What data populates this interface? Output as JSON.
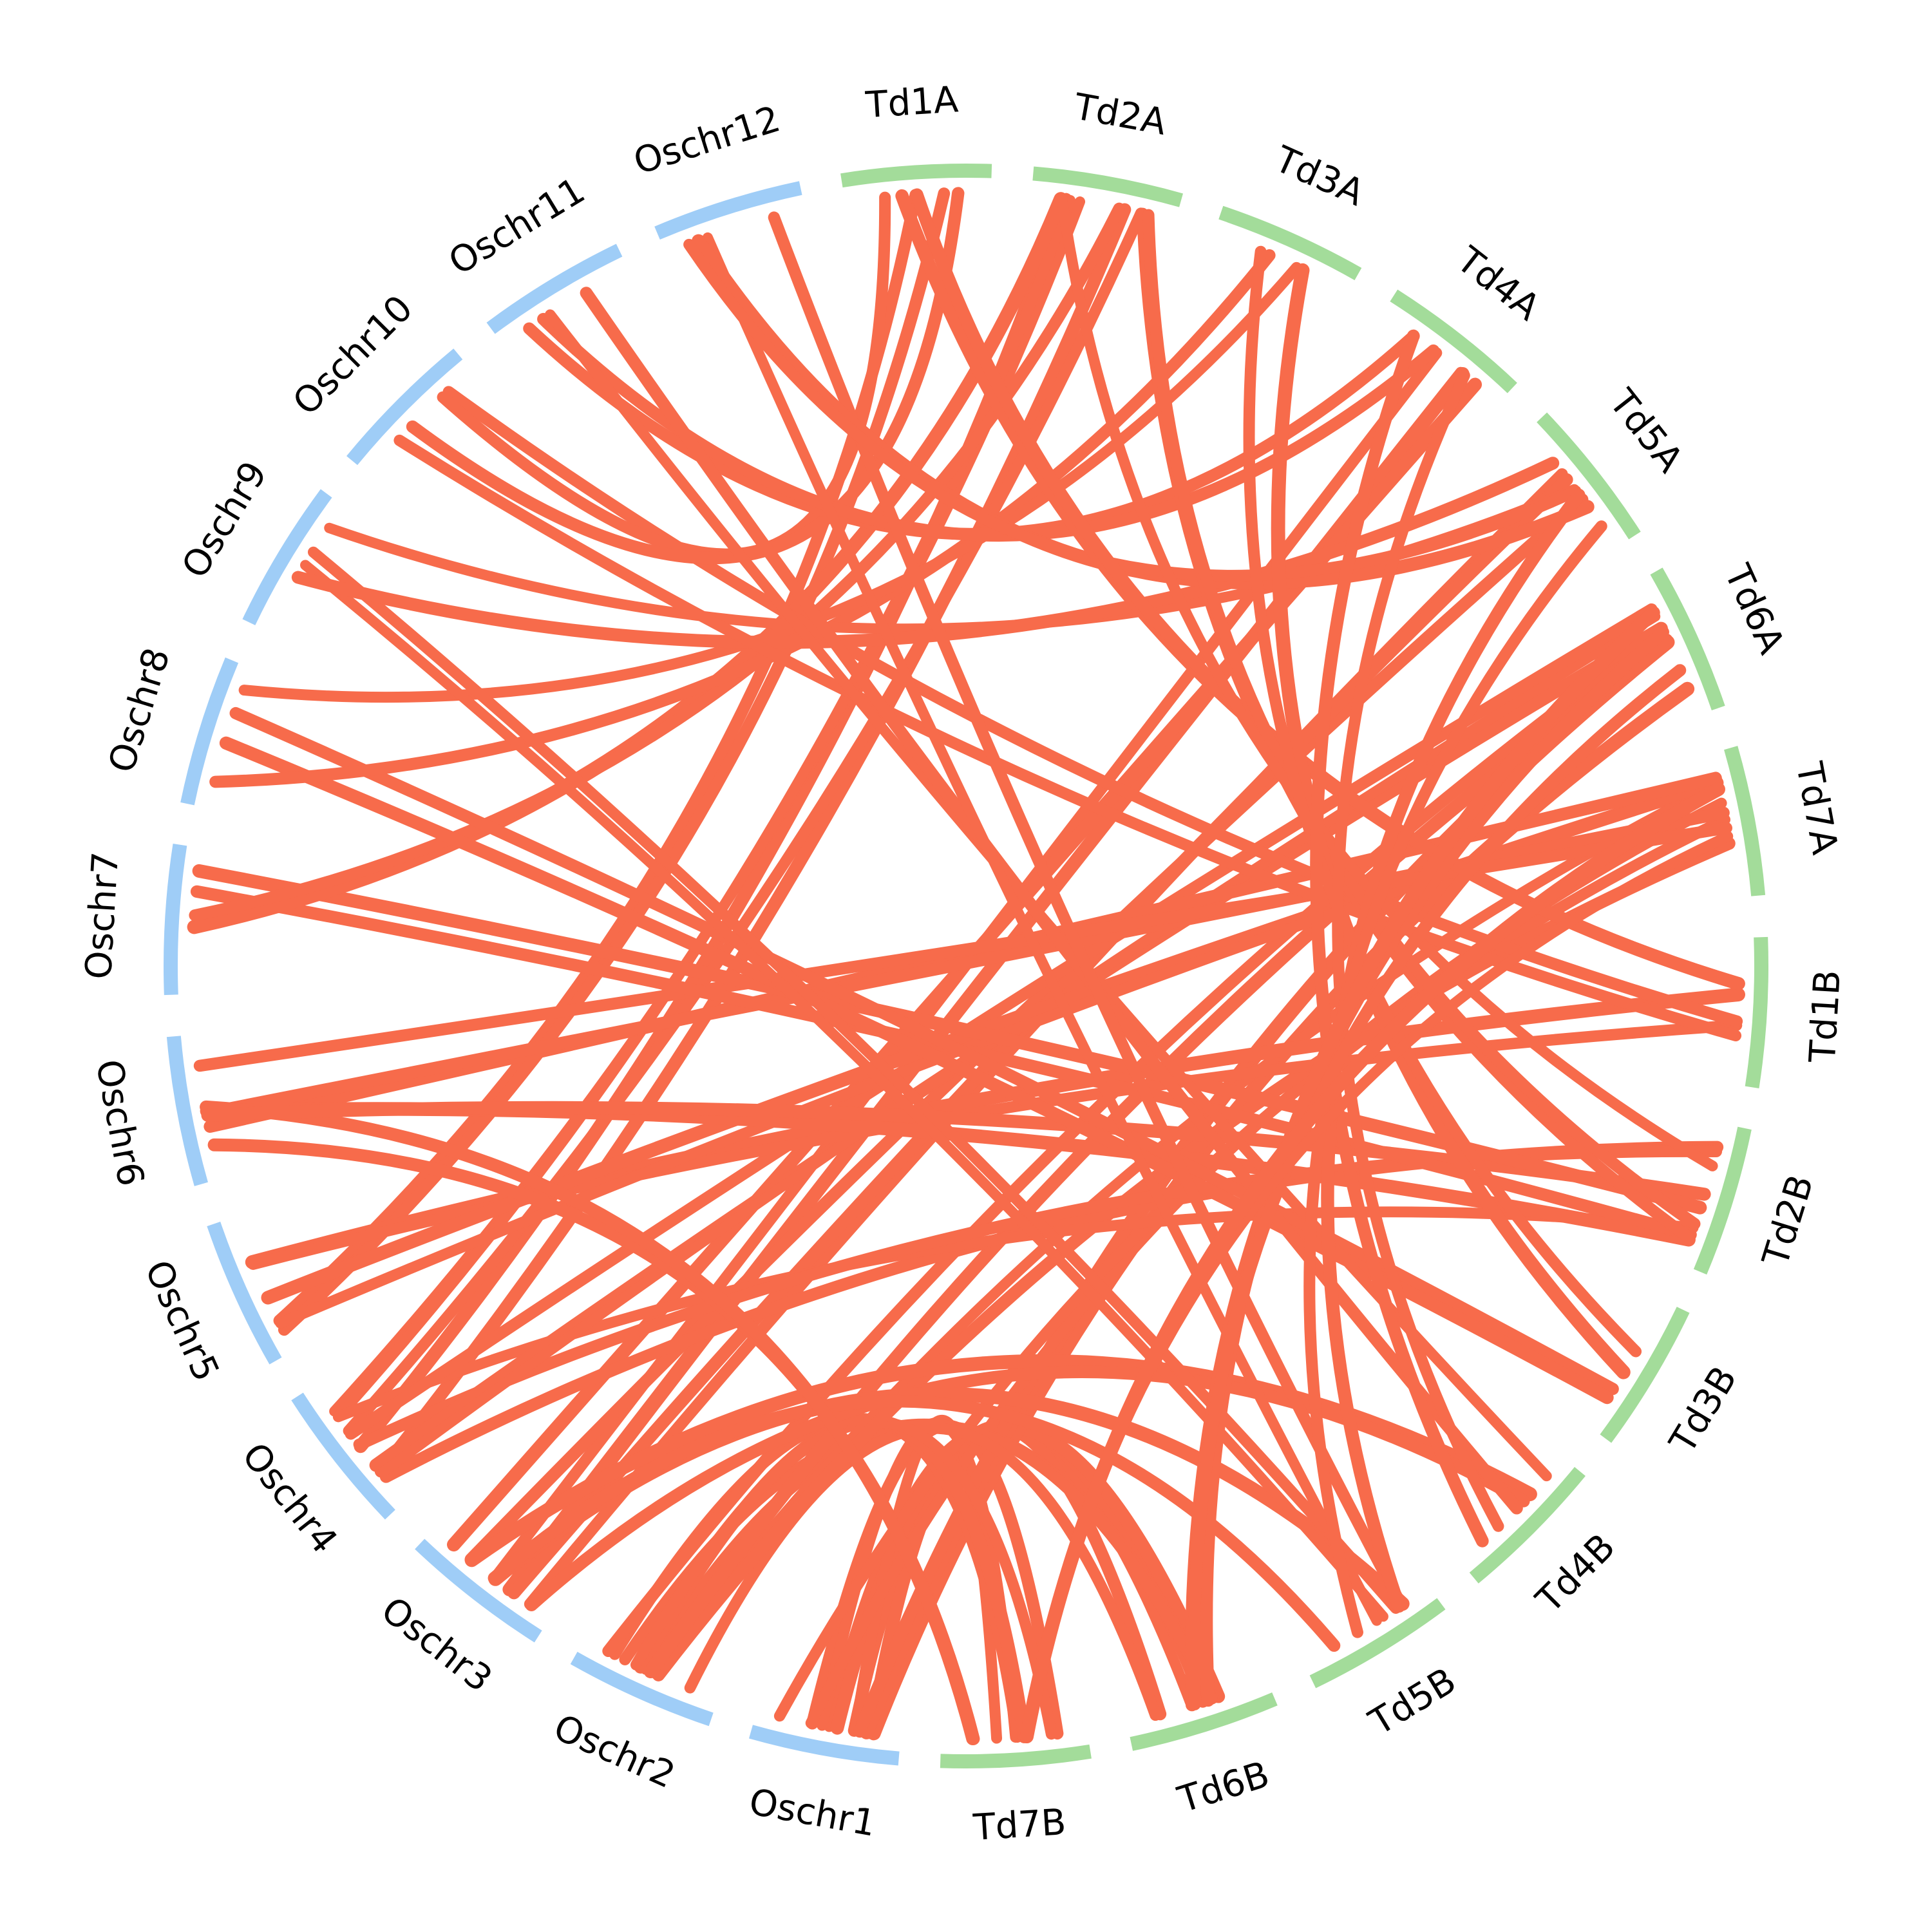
{
  "colors": {
    "rice": "#9fcdf7",
    "wheat": "#a3dc9a",
    "link": "#f76b4b",
    "label": "#000000"
  },
  "chromosomes": [
    {
      "id": "Td1A",
      "label": "Td1A",
      "species": "wheat"
    },
    {
      "id": "Td2A",
      "label": "Td2A",
      "species": "wheat"
    },
    {
      "id": "Td3A",
      "label": "Td3A",
      "species": "wheat"
    },
    {
      "id": "Td4A",
      "label": "Td4A",
      "species": "wheat"
    },
    {
      "id": "Td5A",
      "label": "Td5A",
      "species": "wheat"
    },
    {
      "id": "Td6A",
      "label": "Td6A",
      "species": "wheat"
    },
    {
      "id": "Td7A",
      "label": "Td7A",
      "species": "wheat"
    },
    {
      "id": "Td1B",
      "label": "Td1B",
      "species": "wheat"
    },
    {
      "id": "Td2B",
      "label": "Td2B",
      "species": "wheat"
    },
    {
      "id": "Td3B",
      "label": "Td3B",
      "species": "wheat"
    },
    {
      "id": "Td4B",
      "label": "Td4B",
      "species": "wheat"
    },
    {
      "id": "Td5B",
      "label": "Td5B",
      "species": "wheat"
    },
    {
      "id": "Td6B",
      "label": "Td6B",
      "species": "wheat"
    },
    {
      "id": "Td7B",
      "label": "Td7B",
      "species": "wheat"
    },
    {
      "id": "Oschr1",
      "label": "Oschr1",
      "species": "rice"
    },
    {
      "id": "Oschr2",
      "label": "Oschr2",
      "species": "rice"
    },
    {
      "id": "Oschr3",
      "label": "Oschr3",
      "species": "rice"
    },
    {
      "id": "Oschr4",
      "label": "Oschr4",
      "species": "rice"
    },
    {
      "id": "Oschr5",
      "label": "Oschr5",
      "species": "rice"
    },
    {
      "id": "Oschr6",
      "label": "Oschr6",
      "species": "rice"
    },
    {
      "id": "Oschr7",
      "label": "Oschr7",
      "species": "rice"
    },
    {
      "id": "Oschr8",
      "label": "Oschr8",
      "species": "rice"
    },
    {
      "id": "Oschr9",
      "label": "Oschr9",
      "species": "rice"
    },
    {
      "id": "Oschr10",
      "label": "Oschr10",
      "species": "rice"
    },
    {
      "id": "Oschr11",
      "label": "Oschr11",
      "species": "rice"
    },
    {
      "id": "Oschr12",
      "label": "Oschr12",
      "species": "rice"
    }
  ],
  "links": [
    {
      "a": "Oschr1",
      "b": "Td6B",
      "weight": 4
    },
    {
      "a": "Oschr1",
      "b": "Td7B",
      "weight": 3
    },
    {
      "a": "Oschr1",
      "b": "Td6A",
      "weight": 3
    },
    {
      "a": "Oschr1",
      "b": "Td7A",
      "weight": 2
    },
    {
      "a": "Oschr2",
      "b": "Td6B",
      "weight": 3
    },
    {
      "a": "Oschr2",
      "b": "Td7B",
      "weight": 3
    },
    {
      "a": "Oschr2",
      "b": "Td7A",
      "weight": 2
    },
    {
      "a": "Oschr2",
      "b": "Td6A",
      "weight": 2
    },
    {
      "a": "Oschr3",
      "b": "Td4A",
      "weight": 4
    },
    {
      "a": "Oschr3",
      "b": "Td5A",
      "weight": 3
    },
    {
      "a": "Oschr3",
      "b": "Td4B",
      "weight": 2
    },
    {
      "a": "Oschr3",
      "b": "Td5B",
      "weight": 2
    },
    {
      "a": "Oschr4",
      "b": "Td2A",
      "weight": 5
    },
    {
      "a": "Oschr4",
      "b": "Td2B",
      "weight": 4
    },
    {
      "a": "Oschr4",
      "b": "Td6A",
      "weight": 3
    },
    {
      "a": "Oschr5",
      "b": "Td1A",
      "weight": 2
    },
    {
      "a": "Oschr5",
      "b": "Td1B",
      "weight": 2
    },
    {
      "a": "Oschr5",
      "b": "Td7A",
      "weight": 2
    },
    {
      "a": "Oschr6",
      "b": "Td7A",
      "weight": 3
    },
    {
      "a": "Oschr6",
      "b": "Td7B",
      "weight": 2
    },
    {
      "a": "Oschr6",
      "b": "Td2B",
      "weight": 2
    },
    {
      "a": "Oschr7",
      "b": "Td2B",
      "weight": 2
    },
    {
      "a": "Oschr7",
      "b": "Td2A",
      "weight": 2
    },
    {
      "a": "Oschr8",
      "b": "Td3B",
      "weight": 2
    },
    {
      "a": "Oschr8",
      "b": "Td3A",
      "weight": 2
    },
    {
      "a": "Oschr9",
      "b": "Td5B",
      "weight": 2
    },
    {
      "a": "Oschr9",
      "b": "Td5A",
      "weight": 2
    },
    {
      "a": "Oschr10",
      "b": "Td1B",
      "weight": 2
    },
    {
      "a": "Oschr10",
      "b": "Td1A",
      "weight": 2
    },
    {
      "a": "Oschr11",
      "b": "Td4A",
      "weight": 2
    },
    {
      "a": "Oschr11",
      "b": "Td4B",
      "weight": 2
    },
    {
      "a": "Oschr12",
      "b": "Td5B",
      "weight": 2
    },
    {
      "a": "Oschr12",
      "b": "Td5A",
      "weight": 2
    },
    {
      "a": "Td1A",
      "b": "Td1B",
      "weight": 2
    },
    {
      "a": "Td2A",
      "b": "Td2B",
      "weight": 3
    },
    {
      "a": "Td3A",
      "b": "Td3B",
      "weight": 2
    },
    {
      "a": "Td4A",
      "b": "Td4B",
      "weight": 2
    },
    {
      "a": "Td5A",
      "b": "Td5B",
      "weight": 2
    },
    {
      "a": "Td6A",
      "b": "Td6B",
      "weight": 3
    },
    {
      "a": "Td7A",
      "b": "Td7B",
      "weight": 2
    }
  ]
}
